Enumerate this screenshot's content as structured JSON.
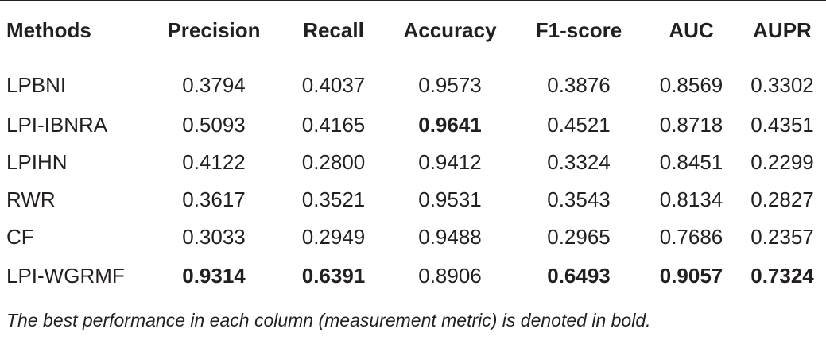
{
  "table": {
    "headers": [
      "Methods",
      "Precision",
      "Recall",
      "Accuracy",
      "F1-score",
      "AUC",
      "AUPR"
    ],
    "rows": [
      {
        "method": "LPBNI",
        "values": [
          "0.3794",
          "0.4037",
          "0.9573",
          "0.3876",
          "0.8569",
          "0.3302"
        ],
        "bold": [
          false,
          false,
          false,
          false,
          false,
          false
        ]
      },
      {
        "method": "LPI-IBNRA",
        "values": [
          "0.5093",
          "0.4165",
          "0.9641",
          "0.4521",
          "0.8718",
          "0.4351"
        ],
        "bold": [
          false,
          false,
          true,
          false,
          false,
          false
        ]
      },
      {
        "method": "LPIHN",
        "values": [
          "0.4122",
          "0.2800",
          "0.9412",
          "0.3324",
          "0.8451",
          "0.2299"
        ],
        "bold": [
          false,
          false,
          false,
          false,
          false,
          false
        ]
      },
      {
        "method": "RWR",
        "values": [
          "0.3617",
          "0.3521",
          "0.9531",
          "0.3543",
          "0.8134",
          "0.2827"
        ],
        "bold": [
          false,
          false,
          false,
          false,
          false,
          false
        ]
      },
      {
        "method": "CF",
        "values": [
          "0.3033",
          "0.2949",
          "0.9488",
          "0.2965",
          "0.7686",
          "0.2357"
        ],
        "bold": [
          false,
          false,
          false,
          false,
          false,
          false
        ]
      },
      {
        "method": "LPI-WGRMF",
        "values": [
          "0.9314",
          "0.6391",
          "0.8906",
          "0.6493",
          "0.9057",
          "0.7324"
        ],
        "bold": [
          true,
          true,
          false,
          true,
          true,
          true
        ]
      }
    ]
  },
  "footnote": "The best performance in each column (measurement metric) is denoted in bold."
}
